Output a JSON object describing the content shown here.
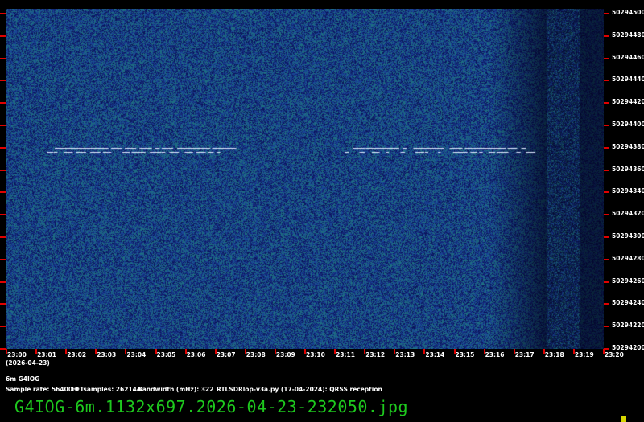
{
  "spectrogram": {
    "freq_labels": [
      "50294500",
      "50294480",
      "50294460",
      "50294440",
      "50294420",
      "50294400",
      "50294380",
      "50294360",
      "50294340",
      "50294320",
      "50294300",
      "50294280",
      "50294260",
      "50294240",
      "50294220",
      "50294200"
    ],
    "time_labels": [
      "23:00",
      "23:01",
      "23:02",
      "23:03",
      "23:04",
      "23:05",
      "23:06",
      "23:07",
      "23:08",
      "23:09",
      "23:10",
      "23:11",
      "23:12",
      "23:13",
      "23:14",
      "23:15",
      "23:16",
      "23:17",
      "23:18",
      "23:19",
      "23:20"
    ],
    "date_label": "(2026-04-23)",
    "colors": {
      "background": "#1a2f8a",
      "noise": "#2a8a7a",
      "tick": "#e00000",
      "signal": "#e0e8ff"
    }
  },
  "info": {
    "station": "6m G4IOG",
    "sample_rate": "Sample rate: 56400.0",
    "fft_samples": "FFTsamples: 262144",
    "bandwidth": "Bandwidth (mHz): 322",
    "software": "RTLSDRlop-v3a.py (17-04-2024): QRSS reception"
  },
  "filename": "G4IOG-6m.1132x697.2026-04-23-232050.jpg"
}
